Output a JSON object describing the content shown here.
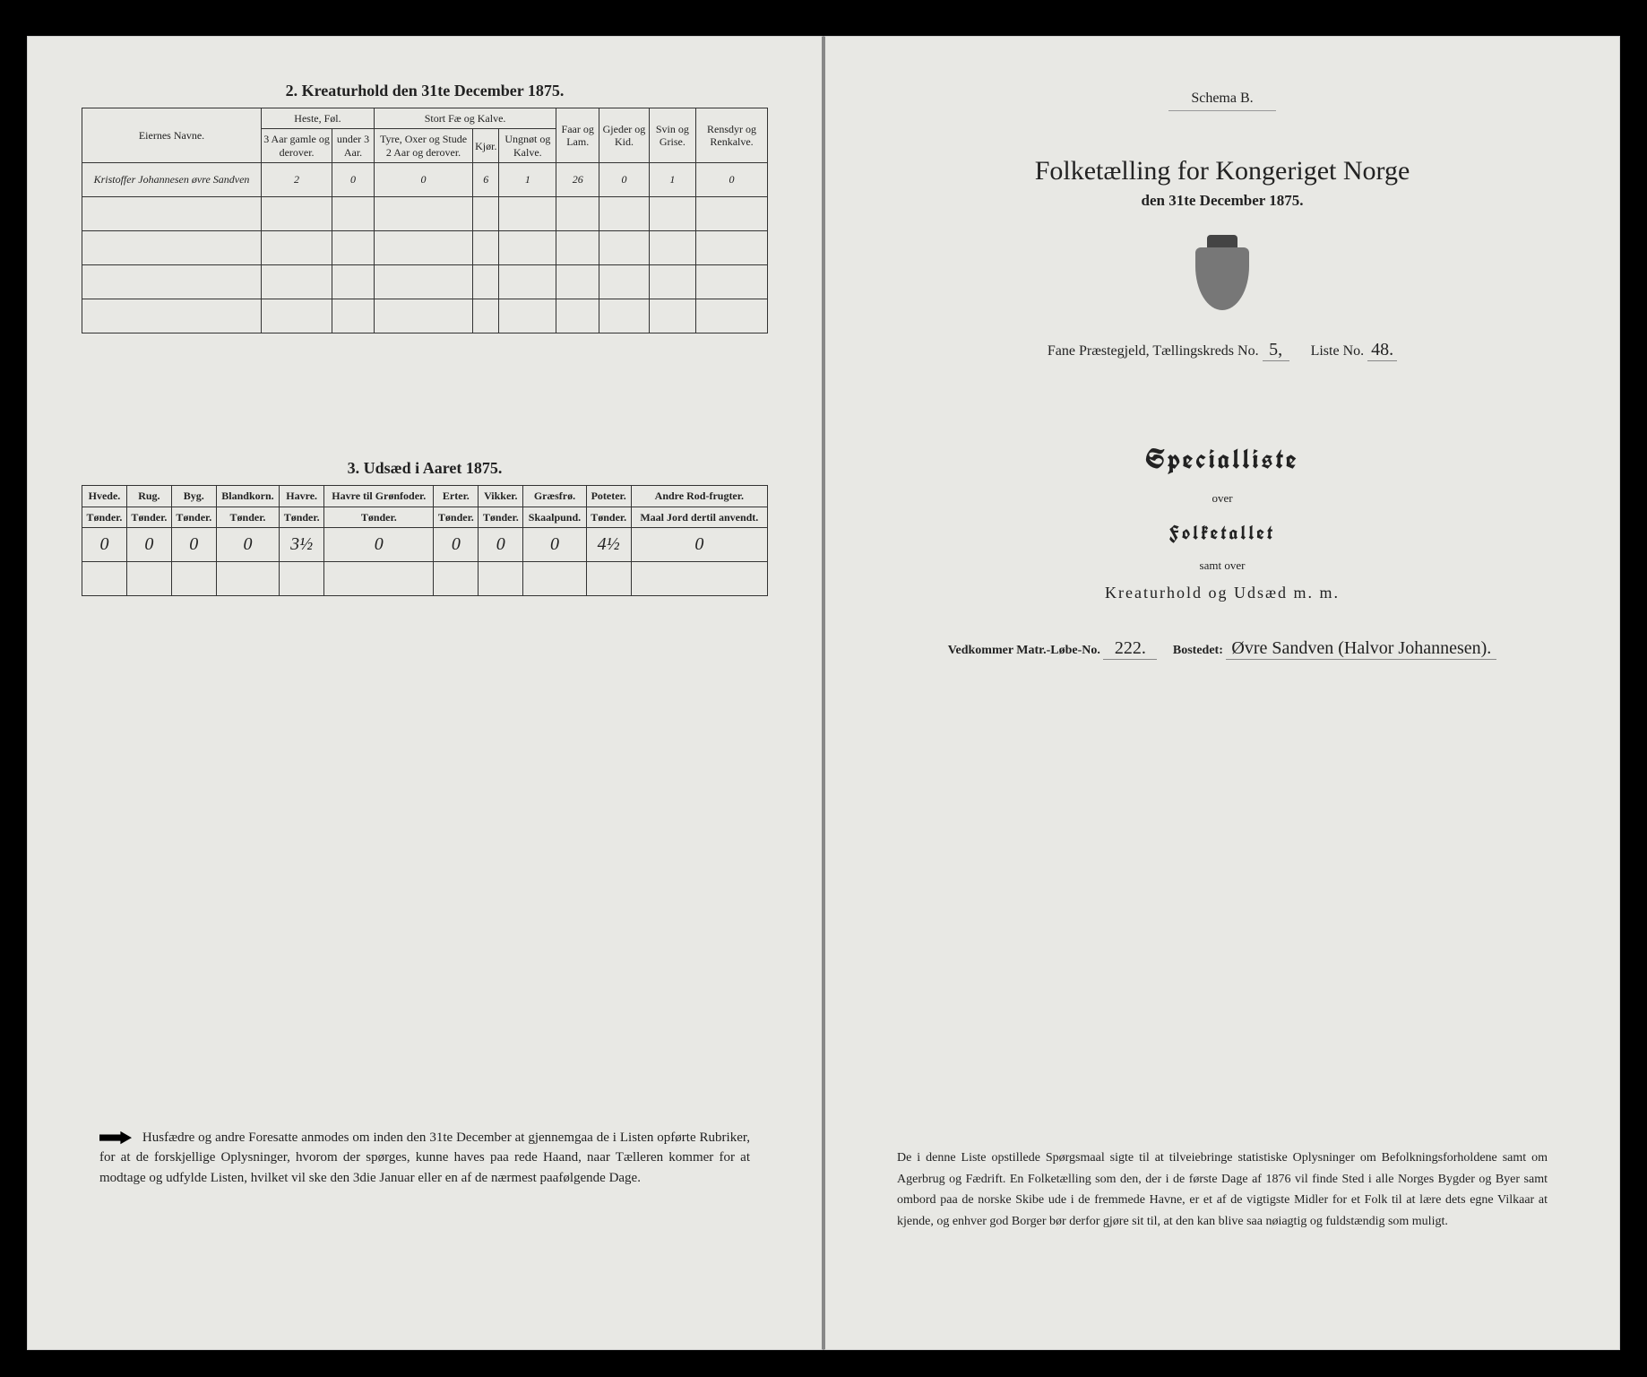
{
  "left": {
    "section2": {
      "title": "2.  Kreaturhold den 31te December 1875.",
      "headers": {
        "owner": "Eiernes Navne.",
        "horse_group": "Heste, Føl.",
        "horse_a": "3 Aar gamle og derover.",
        "horse_b": "under 3 Aar.",
        "cattle_group": "Stort Fæ og Kalve.",
        "cattle_a": "Tyre, Oxer og Stude 2 Aar og derover.",
        "cattle_b": "Kjør.",
        "cattle_c": "Ungnøt og Kalve.",
        "sheep": "Faar og Lam.",
        "goats": "Gjeder og Kid.",
        "pigs": "Svin og Grise.",
        "reindeer": "Rensdyr og Renkalve."
      },
      "row": {
        "owner": "Kristoffer Johannesen øvre Sandven",
        "v": [
          "2",
          "0",
          "0",
          "6",
          "1",
          "26",
          "0",
          "1",
          "0"
        ]
      }
    },
    "section3": {
      "title": "3.  Udsæd i Aaret 1875.",
      "cols": [
        {
          "t": "Hvede.",
          "s": "Tønder."
        },
        {
          "t": "Rug.",
          "s": "Tønder."
        },
        {
          "t": "Byg.",
          "s": "Tønder."
        },
        {
          "t": "Blandkorn.",
          "s": "Tønder."
        },
        {
          "t": "Havre.",
          "s": "Tønder."
        },
        {
          "t": "Havre til Grønfoder.",
          "s": "Tønder."
        },
        {
          "t": "Erter.",
          "s": "Tønder."
        },
        {
          "t": "Vikker.",
          "s": "Tønder."
        },
        {
          "t": "Græsfrø.",
          "s": "Skaalpund."
        },
        {
          "t": "Poteter.",
          "s": "Tønder."
        },
        {
          "t": "Andre Rod-frugter.",
          "s": "Maal Jord dertil anvendt."
        }
      ],
      "values": [
        "0",
        "0",
        "0",
        "0",
        "3½",
        "0",
        "0",
        "0",
        "0",
        "4½",
        "0"
      ]
    },
    "footnote": "Husfædre og andre Foresatte anmodes om inden den 31te December at gjennemgaa de i Listen opførte Rubriker, for at de forskjellige Oplysninger, hvorom der spørges, kunne haves paa rede Haand, naar Tælleren kommer for at modtage og udfylde Listen, hvilket vil ske den 3die Januar eller en af de nærmest paafølgende Dage."
  },
  "right": {
    "schema": "Schema B.",
    "title": "Folketælling for Kongeriget Norge",
    "title_sub": "den 31te December 1875.",
    "meta": {
      "parish_label": "Fane Præstegjeld, Tællingskreds No.",
      "parish_no": "5,",
      "liste_label": "Liste No.",
      "liste_no": "48."
    },
    "special": "Specialliste",
    "over": "over",
    "folketallet": "Folketallet",
    "samt": "samt over",
    "kreat": "Kreaturhold og Udsæd m. m.",
    "ved": {
      "label1": "Vedkommer Matr.-Løbe-No.",
      "matr": "222.",
      "label2": "Bostedet:",
      "bosted": "Øvre Sandven (Halvor Johannesen)."
    },
    "footnote": "De i denne Liste opstillede Spørgsmaal sigte til at tilveiebringe statistiske Oplysninger om Befolkningsforholdene samt om Agerbrug og Fædrift. En Folketælling som den, der i de første Dage af 1876 vil finde Sted i alle Norges Bygder og Byer samt ombord paa de norske Skibe ude i de fremmede Havne, er et af de vigtigste Midler for et Folk til at lære dets egne Vilkaar at kjende, og enhver god Borger bør derfor gjøre sit til, at den kan blive saa nøiagtig og fuldstændig som muligt."
  }
}
